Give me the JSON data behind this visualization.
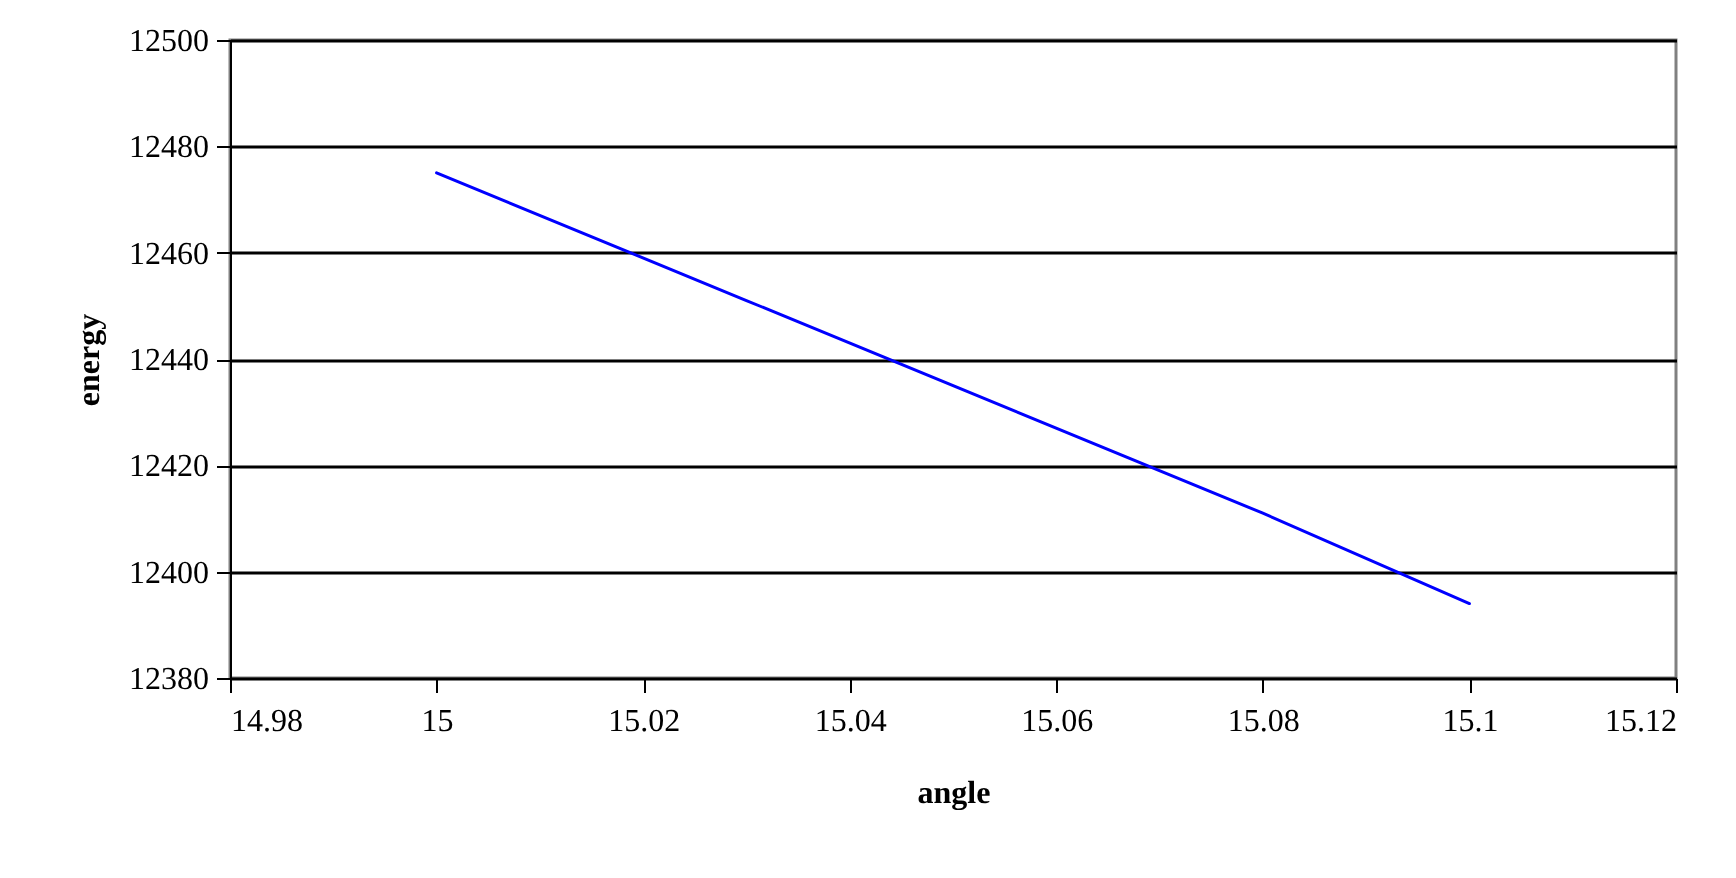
{
  "chart_data": {
    "type": "line",
    "xlabel": "angle",
    "ylabel": "energy",
    "x": [
      15,
      15.03,
      15.08,
      15.1
    ],
    "series": [
      {
        "color": "#0000ff",
        "values": [
          12475,
          12451,
          12411,
          12394
        ]
      }
    ],
    "xlim": [
      14.98,
      15.12
    ],
    "xticks": [
      14.98,
      15,
      15.02,
      15.04,
      15.06,
      15.08,
      15.1,
      15.12
    ],
    "ylim": [
      12380,
      12500
    ],
    "yticks": [
      12380,
      12400,
      12420,
      12440,
      12460,
      12480,
      12500
    ],
    "grid": "y",
    "legend": false,
    "marker": "none",
    "line_style": "solid"
  }
}
